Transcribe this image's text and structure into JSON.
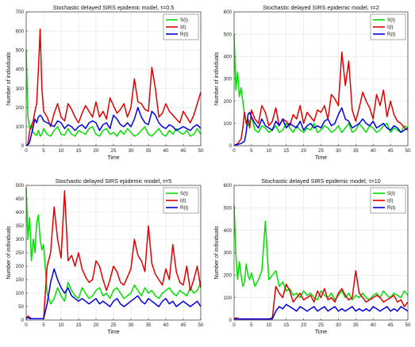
{
  "chart_data": [
    {
      "type": "line",
      "title": "Stochastic delayed SIRS epidemic model,   τ=0.5",
      "xlabel": "Time",
      "ylabel": "Number of individuals",
      "xlim": [
        0,
        50
      ],
      "ylim": [
        0,
        700
      ],
      "xticks": [
        0,
        5,
        10,
        15,
        20,
        25,
        30,
        35,
        40,
        45,
        50
      ],
      "yticks": [
        0,
        100,
        200,
        300,
        400,
        500,
        600,
        700
      ],
      "grid": true,
      "legend_position": "top-right",
      "x": [
        0,
        0.5,
        1,
        1.5,
        2,
        2.5,
        3,
        3.5,
        4,
        4.5,
        5,
        6,
        7,
        8,
        9,
        10,
        11,
        12,
        13,
        14,
        15,
        16,
        17,
        18,
        19,
        20,
        21,
        22,
        23,
        24,
        25,
        26,
        27,
        28,
        29,
        30,
        31,
        32,
        33,
        34,
        35,
        36,
        37,
        38,
        39,
        40,
        41,
        42,
        43,
        44,
        45,
        46,
        47,
        48,
        49,
        50
      ],
      "series": [
        {
          "name": "S(t)",
          "color": "#00e000",
          "values": [
            500,
            150,
            90,
            110,
            70,
            60,
            55,
            80,
            50,
            60,
            90,
            60,
            50,
            80,
            100,
            60,
            55,
            90,
            60,
            50,
            80,
            70,
            60,
            90,
            100,
            60,
            50,
            80,
            90,
            60,
            70,
            50,
            80,
            60,
            90,
            70,
            50,
            60,
            80,
            100,
            60,
            50,
            70,
            90,
            60,
            50,
            80,
            60,
            90,
            70,
            60,
            80,
            50,
            60,
            90,
            60
          ]
        },
        {
          "name": "I(t)",
          "color": "#e00000",
          "values": [
            0,
            10,
            80,
            100,
            130,
            180,
            220,
            400,
            610,
            300,
            180,
            150,
            100,
            170,
            220,
            150,
            130,
            220,
            190,
            150,
            120,
            170,
            210,
            180,
            150,
            230,
            150,
            180,
            140,
            250,
            210,
            170,
            190,
            220,
            150,
            200,
            350,
            230,
            220,
            190,
            180,
            410,
            300,
            150,
            170,
            220,
            180,
            160,
            140,
            120,
            180,
            150,
            120,
            160,
            220,
            280
          ]
        },
        {
          "name": "R(t)",
          "color": "#0000e0",
          "values": [
            0,
            5,
            20,
            60,
            100,
            140,
            120,
            150,
            160,
            150,
            130,
            120,
            110,
            100,
            130,
            120,
            90,
            110,
            100,
            80,
            100,
            110,
            90,
            120,
            130,
            120,
            80,
            110,
            120,
            90,
            160,
            140,
            110,
            100,
            120,
            100,
            140,
            200,
            150,
            120,
            110,
            180,
            160,
            120,
            100,
            90,
            110,
            100,
            80,
            90,
            100,
            90,
            80,
            100,
            110,
            90
          ]
        }
      ]
    },
    {
      "type": "line",
      "title": "Stochastic delayed SIRS epidemic model,   τ=2",
      "xlabel": "Time",
      "ylabel": "Number of individuals",
      "xlim": [
        0,
        50
      ],
      "ylim": [
        0,
        600
      ],
      "xticks": [
        0,
        5,
        10,
        15,
        20,
        25,
        30,
        35,
        40,
        45,
        50
      ],
      "yticks": [
        0,
        100,
        200,
        300,
        400,
        500,
        600
      ],
      "grid": true,
      "legend_position": "top-right",
      "x": [
        0,
        0.5,
        1,
        1.5,
        2,
        2.5,
        3,
        3.5,
        4,
        4.5,
        5,
        6,
        7,
        8,
        9,
        10,
        11,
        12,
        13,
        14,
        15,
        16,
        17,
        18,
        19,
        20,
        21,
        22,
        23,
        24,
        25,
        26,
        27,
        28,
        29,
        30,
        31,
        32,
        33,
        34,
        35,
        36,
        37,
        38,
        39,
        40,
        41,
        42,
        43,
        44,
        45,
        46,
        47,
        48,
        49,
        50
      ],
      "series": [
        {
          "name": "S(t)",
          "color": "#00e000",
          "values": [
            500,
            250,
            330,
            220,
            260,
            200,
            140,
            100,
            90,
            110,
            130,
            70,
            60,
            90,
            80,
            60,
            70,
            90,
            60,
            70,
            100,
            80,
            60,
            90,
            70,
            60,
            80,
            70,
            100,
            60,
            70,
            90,
            80,
            60,
            70,
            90,
            60,
            80,
            100,
            60,
            70,
            100,
            80,
            60,
            90,
            80,
            60,
            70,
            90,
            100,
            60,
            80,
            70,
            60,
            90,
            80
          ]
        },
        {
          "name": "I(t)",
          "color": "#e00000",
          "values": [
            0,
            5,
            10,
            20,
            30,
            80,
            150,
            100,
            120,
            80,
            160,
            120,
            100,
            180,
            150,
            90,
            110,
            170,
            90,
            120,
            110,
            90,
            140,
            120,
            180,
            100,
            150,
            130,
            110,
            160,
            150,
            180,
            120,
            230,
            210,
            180,
            420,
            270,
            380,
            160,
            110,
            170,
            240,
            200,
            170,
            120,
            230,
            180,
            250,
            130,
            200,
            140,
            110,
            100,
            80,
            70
          ]
        },
        {
          "name": "R(t)",
          "color": "#0000e0",
          "values": [
            0,
            5,
            5,
            8,
            10,
            15,
            20,
            60,
            140,
            150,
            130,
            100,
            80,
            120,
            90,
            80,
            70,
            110,
            90,
            120,
            80,
            100,
            90,
            80,
            110,
            70,
            90,
            100,
            80,
            90,
            80,
            110,
            120,
            90,
            100,
            140,
            170,
            120,
            110,
            80,
            90,
            100,
            120,
            100,
            90,
            110,
            80,
            90,
            100,
            80,
            70,
            90,
            80,
            60,
            70,
            80
          ]
        }
      ]
    },
    {
      "type": "line",
      "title": "Stochastic delayed SIRS epidemic model,   τ=5",
      "xlabel": "Time",
      "ylabel": "Number of individuals",
      "xlim": [
        0,
        50
      ],
      "ylim": [
        0,
        500
      ],
      "xticks": [
        0,
        5,
        10,
        15,
        20,
        25,
        30,
        35,
        40,
        45,
        50
      ],
      "yticks": [
        0,
        50,
        100,
        150,
        200,
        250,
        300,
        350,
        400,
        450,
        500
      ],
      "grid": true,
      "legend_position": "top-right",
      "x": [
        0,
        0.5,
        1,
        1.5,
        2,
        2.5,
        3,
        3.5,
        4,
        4.5,
        5,
        6,
        7,
        8,
        9,
        10,
        11,
        12,
        13,
        14,
        15,
        16,
        17,
        18,
        19,
        20,
        21,
        22,
        23,
        24,
        25,
        26,
        27,
        28,
        29,
        30,
        31,
        32,
        33,
        34,
        35,
        36,
        37,
        38,
        39,
        40,
        41,
        42,
        43,
        44,
        45,
        46,
        47,
        48,
        49,
        50
      ],
      "series": [
        {
          "name": "S(t)",
          "color": "#00e000",
          "values": [
            490,
            300,
            380,
            220,
            300,
            250,
            360,
            390,
            300,
            260,
            280,
            100,
            60,
            80,
            120,
            90,
            70,
            140,
            110,
            90,
            80,
            120,
            100,
            80,
            90,
            110,
            120,
            90,
            100,
            80,
            110,
            120,
            100,
            80,
            90,
            100,
            130,
            110,
            90,
            120,
            100,
            110,
            90,
            80,
            100,
            110,
            120,
            100,
            90,
            110,
            100,
            90,
            120,
            100,
            110,
            140
          ]
        },
        {
          "name": "I(t)",
          "color": "#e00000",
          "values": [
            5,
            15,
            10,
            5,
            5,
            5,
            5,
            5,
            5,
            5,
            5,
            200,
            250,
            420,
            300,
            230,
            480,
            220,
            240,
            200,
            250,
            190,
            160,
            140,
            150,
            220,
            200,
            150,
            110,
            150,
            200,
            180,
            140,
            130,
            160,
            190,
            300,
            240,
            220,
            180,
            350,
            210,
            170,
            150,
            130,
            190,
            150,
            280,
            180,
            140,
            130,
            200,
            110,
            150,
            200,
            120
          ]
        },
        {
          "name": "R(t)",
          "color": "#0000e0",
          "values": [
            5,
            10,
            5,
            5,
            5,
            5,
            5,
            5,
            5,
            5,
            5,
            60,
            140,
            190,
            150,
            120,
            100,
            120,
            90,
            80,
            70,
            80,
            70,
            60,
            70,
            80,
            60,
            70,
            60,
            50,
            70,
            80,
            60,
            50,
            60,
            70,
            80,
            90,
            70,
            60,
            80,
            70,
            60,
            50,
            70,
            80,
            60,
            70,
            50,
            60,
            70,
            60,
            50,
            60,
            70,
            50
          ]
        }
      ]
    },
    {
      "type": "line",
      "title": "Stochastic delayed SIRS epidemic model,   τ=10",
      "xlabel": "Time",
      "ylabel": "Number of individuals",
      "xlim": [
        0,
        50
      ],
      "ylim": [
        0,
        600
      ],
      "xticks": [
        0,
        5,
        10,
        15,
        20,
        25,
        30,
        35,
        40,
        45,
        50
      ],
      "yticks": [
        0,
        100,
        200,
        300,
        400,
        500,
        600
      ],
      "grid": true,
      "legend_position": "top-right",
      "x": [
        0,
        0.5,
        1,
        1.5,
        2,
        2.5,
        3,
        3.5,
        4,
        4.5,
        5,
        6,
        7,
        8,
        9,
        10,
        11,
        12,
        13,
        14,
        15,
        16,
        17,
        18,
        19,
        20,
        21,
        22,
        23,
        24,
        25,
        26,
        27,
        28,
        29,
        30,
        31,
        32,
        33,
        34,
        35,
        36,
        37,
        38,
        39,
        40,
        41,
        42,
        43,
        44,
        45,
        46,
        47,
        48,
        49,
        50
      ],
      "series": [
        {
          "name": "S(t)",
          "color": "#00e000",
          "values": [
            510,
            300,
            180,
            260,
            200,
            150,
            170,
            250,
            200,
            180,
            210,
            150,
            180,
            220,
            440,
            180,
            200,
            220,
            150,
            170,
            130,
            140,
            110,
            120,
            100,
            130,
            110,
            120,
            100,
            90,
            130,
            110,
            100,
            120,
            90,
            110,
            130,
            100,
            120,
            90,
            110,
            100,
            120,
            100,
            90,
            110,
            120,
            100,
            130,
            110,
            100,
            120,
            110,
            100,
            130,
            110
          ]
        },
        {
          "name": "I(t)",
          "color": "#e00000",
          "values": [
            5,
            10,
            8,
            5,
            5,
            5,
            5,
            5,
            5,
            5,
            5,
            5,
            5,
            5,
            5,
            5,
            10,
            150,
            120,
            100,
            160,
            130,
            80,
            100,
            120,
            90,
            100,
            110,
            80,
            130,
            100,
            140,
            90,
            100,
            80,
            120,
            140,
            110,
            90,
            100,
            220,
            120,
            100,
            80,
            90,
            100,
            110,
            100,
            80,
            90,
            100,
            110,
            80,
            90,
            60,
            80
          ]
        },
        {
          "name": "R(t)",
          "color": "#0000e0",
          "values": [
            5,
            5,
            5,
            5,
            5,
            5,
            5,
            5,
            5,
            5,
            5,
            5,
            5,
            5,
            5,
            5,
            5,
            40,
            60,
            50,
            70,
            60,
            50,
            40,
            60,
            50,
            40,
            50,
            60,
            40,
            50,
            60,
            40,
            50,
            60,
            40,
            50,
            40,
            50,
            60,
            40,
            50,
            40,
            50,
            40,
            60,
            50,
            40,
            50,
            60,
            40,
            50,
            40,
            60,
            50,
            40
          ]
        }
      ]
    }
  ]
}
